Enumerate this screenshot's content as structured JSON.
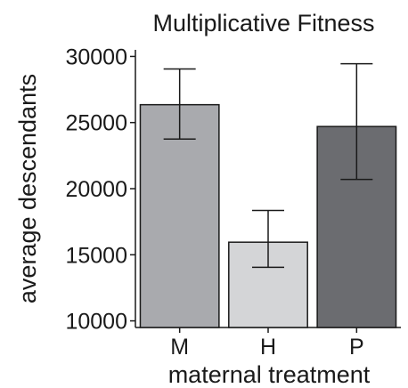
{
  "chart_data": {
    "type": "bar",
    "title": "Multiplicative Fitness",
    "xlabel": "maternal treatment",
    "ylabel": "average descendants",
    "categories": [
      "M",
      "H",
      "P"
    ],
    "values": [
      26350,
      15950,
      24700
    ],
    "error_low": [
      23750,
      14050,
      20700
    ],
    "error_high": [
      29050,
      18350,
      29450
    ],
    "colors": [
      "#a9aaae",
      "#d4d5d7",
      "#6b6c70"
    ],
    "ylim": [
      9500,
      30500
    ],
    "yticks": [
      10000,
      15000,
      20000,
      25000,
      30000
    ],
    "ytick_labels": [
      "10000",
      "15000",
      "20000",
      "25000",
      "30000"
    ],
    "grid": false,
    "legend": "none"
  }
}
